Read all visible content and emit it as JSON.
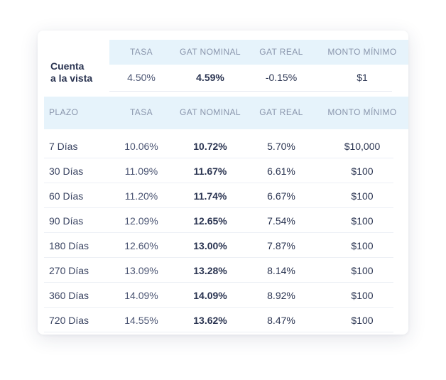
{
  "cuenta_vista": {
    "label_line1": "Cuenta",
    "label_line2": "a la vista",
    "headers": {
      "tasa": "TASA",
      "gat_nominal": "GAT NOMINAL",
      "gat_real": "GAT REAL",
      "monto_minimo": "MONTO MÍNIMO"
    },
    "values": {
      "tasa": "4.50%",
      "gat_nominal": "4.59%",
      "gat_real": "-0.15%",
      "monto_minimo": "$1"
    }
  },
  "plazos": {
    "headers": {
      "plazo": "PLAZO",
      "tasa": "TASA",
      "gat_nominal": "GAT NOMINAL",
      "gat_real": "GAT REAL",
      "monto_minimo": "MONTO MÍNIMO"
    },
    "rows": [
      {
        "plazo": "7 Días",
        "tasa": "10.06%",
        "gat_nominal": "10.72%",
        "gat_real": "5.70%",
        "monto_minimo": "$10,000"
      },
      {
        "plazo": "30 Días",
        "tasa": "11.09%",
        "gat_nominal": "11.67%",
        "gat_real": "6.61%",
        "monto_minimo": "$100"
      },
      {
        "plazo": "60 Días",
        "tasa": "11.20%",
        "gat_nominal": "11.74%",
        "gat_real": "6.67%",
        "monto_minimo": "$100"
      },
      {
        "plazo": "90 Días",
        "tasa": "12.09%",
        "gat_nominal": "12.65%",
        "gat_real": "7.54%",
        "monto_minimo": "$100"
      },
      {
        "plazo": "180 Días",
        "tasa": "12.60%",
        "gat_nominal": "13.00%",
        "gat_real": "7.87%",
        "monto_minimo": "$100"
      },
      {
        "plazo": "270 Días",
        "tasa": "13.09%",
        "gat_nominal": "13.28%",
        "gat_real": "8.14%",
        "monto_minimo": "$100"
      },
      {
        "plazo": "360 Días",
        "tasa": "14.09%",
        "gat_nominal": "14.09%",
        "gat_real": "8.92%",
        "monto_minimo": "$100"
      },
      {
        "plazo": "720 Días",
        "tasa": "14.55%",
        "gat_nominal": "13.62%",
        "gat_real": "8.47%",
        "monto_minimo": "$100"
      }
    ]
  },
  "colors": {
    "header_bg": "#e6f3fb",
    "header_text": "#8a96ad",
    "body_text": "#2a3451"
  }
}
